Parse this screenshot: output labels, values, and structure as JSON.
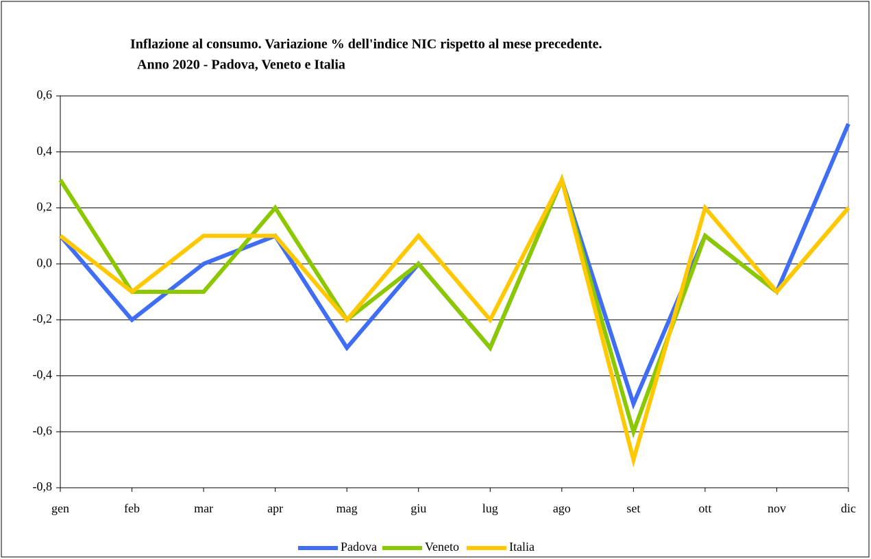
{
  "chart_data": {
    "type": "line",
    "title": [
      "Inflazione al consumo. Variazione % dell'indice NIC rispetto al mese precedente.",
      "Anno 2020 - Padova, Veneto e Italia"
    ],
    "categories": [
      "gen",
      "feb",
      "mar",
      "apr",
      "mag",
      "giu",
      "lug",
      "ago",
      "set",
      "ott",
      "nov",
      "dic"
    ],
    "series": [
      {
        "name": "Padova",
        "color": "#3f6df4",
        "values": [
          0.1,
          -0.2,
          0.0,
          0.1,
          -0.3,
          0.0,
          -0.3,
          0.3,
          -0.5,
          0.1,
          -0.1,
          0.5
        ]
      },
      {
        "name": "Veneto",
        "color": "#8cc800",
        "values": [
          0.3,
          -0.1,
          -0.1,
          0.2,
          -0.2,
          0.0,
          -0.3,
          0.3,
          -0.6,
          0.1,
          -0.1,
          0.2
        ]
      },
      {
        "name": "Italia",
        "color": "#ffc800",
        "values": [
          0.1,
          -0.1,
          0.1,
          0.1,
          -0.2,
          0.1,
          -0.2,
          0.3,
          -0.7,
          0.2,
          -0.1,
          0.2
        ]
      }
    ],
    "ylim": [
      -0.8,
      0.6
    ],
    "yticks": [
      {
        "value": -0.8,
        "label": "-0,8"
      },
      {
        "value": -0.6,
        "label": "-0,6"
      },
      {
        "value": -0.4,
        "label": "-0,4"
      },
      {
        "value": -0.2,
        "label": "-0,2"
      },
      {
        "value": 0.0,
        "label": "0,0"
      },
      {
        "value": 0.2,
        "label": "0,2"
      },
      {
        "value": 0.4,
        "label": "0,4"
      },
      {
        "value": 0.6,
        "label": "0,6"
      }
    ],
    "grid": true,
    "legend": "bottom"
  }
}
